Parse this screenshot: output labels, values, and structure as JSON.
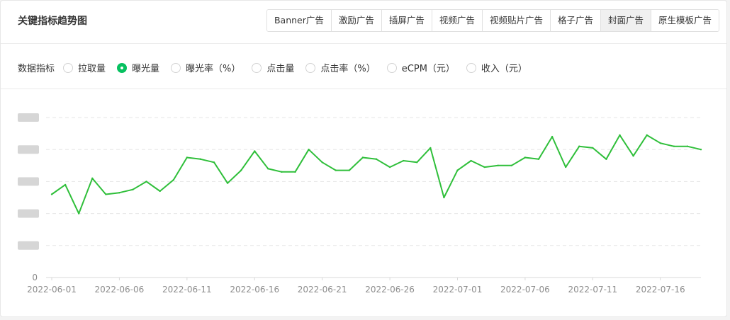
{
  "header": {
    "title": "关键指标趋势图",
    "tabs": [
      {
        "label": "Banner广告"
      },
      {
        "label": "激励广告"
      },
      {
        "label": "插屏广告"
      },
      {
        "label": "视频广告"
      },
      {
        "label": "视频贴片广告"
      },
      {
        "label": "格子广告"
      },
      {
        "label": "封面广告",
        "active": true
      },
      {
        "label": "原生模板广告"
      }
    ]
  },
  "metrics": {
    "label": "数据指标",
    "options": [
      {
        "label": "拉取量",
        "checked": false
      },
      {
        "label": "曝光量",
        "checked": true
      },
      {
        "label": "曝光率（%）",
        "checked": false
      },
      {
        "label": "点击量",
        "checked": false
      },
      {
        "label": "点击率（%）",
        "checked": false
      },
      {
        "label": "eCPM（元）",
        "checked": false
      },
      {
        "label": "收入（元）",
        "checked": false
      }
    ]
  },
  "chart_data": {
    "type": "line",
    "series": [
      {
        "color": "#2fbf3a",
        "values": [
          0.52,
          0.58,
          0.4,
          0.62,
          0.52,
          0.53,
          0.55,
          0.6,
          0.54,
          0.61,
          0.75,
          0.74,
          0.72,
          0.59,
          0.67,
          0.79,
          0.68,
          0.66,
          0.66,
          0.8,
          0.72,
          0.67,
          0.67,
          0.75,
          0.74,
          0.69,
          0.73,
          0.72,
          0.81,
          0.5,
          0.67,
          0.73,
          0.69,
          0.7,
          0.7,
          0.75,
          0.74,
          0.88,
          0.69,
          0.82,
          0.81,
          0.74,
          0.89,
          0.76,
          0.89,
          0.84,
          0.82,
          0.82,
          0.8
        ]
      }
    ],
    "x_start": "2022-06-01",
    "x_tick_labels": [
      "2022-06-01",
      "2022-06-06",
      "2022-06-11",
      "2022-06-16",
      "2022-06-21",
      "2022-06-26",
      "2022-07-01",
      "2022-07-06",
      "2022-07-11",
      "2022-07-16"
    ],
    "y_tick_labels": [
      "0"
    ],
    "ylim": [
      0,
      1
    ],
    "grid": true,
    "legend": "none"
  }
}
